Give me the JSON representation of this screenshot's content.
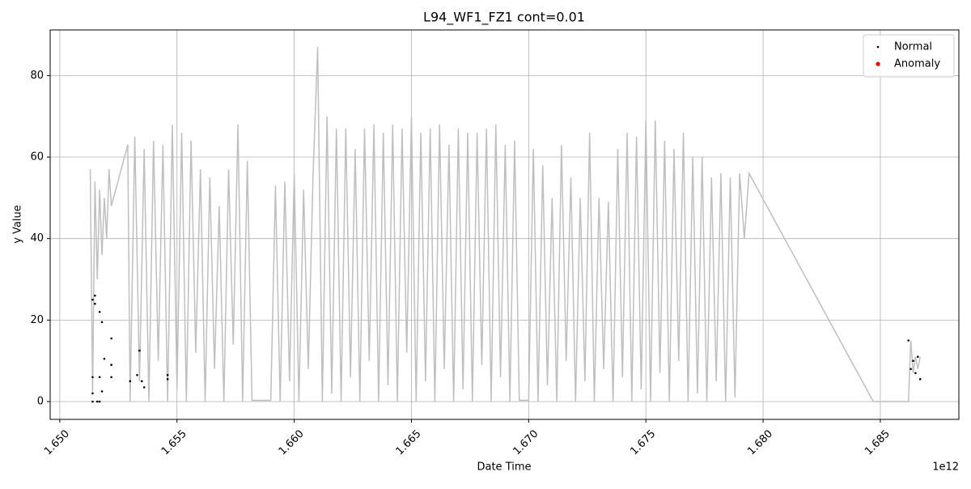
{
  "chart_data": {
    "type": "line",
    "title": "L94_WF1_FZ1 cont=0.01",
    "xlabel": "Date Time",
    "ylabel": "y Value",
    "x_offset_label": "1e12",
    "xlim": [
      1.64959,
      1.68835
    ],
    "ylim": [
      -4.37,
      91.2
    ],
    "xticks": [
      {
        "value": 1.65,
        "label": "1.650"
      },
      {
        "value": 1.655,
        "label": "1.655"
      },
      {
        "value": 1.66,
        "label": "1.660"
      },
      {
        "value": 1.665,
        "label": "1.665"
      },
      {
        "value": 1.67,
        "label": "1.670"
      },
      {
        "value": 1.675,
        "label": "1.675"
      },
      {
        "value": 1.68,
        "label": "1.680"
      },
      {
        "value": 1.685,
        "label": "1.685"
      }
    ],
    "yticks": [
      0,
      20,
      40,
      60,
      80
    ],
    "grid": true,
    "legend": "upper right",
    "series": [
      {
        "type": "line",
        "color": "#bfbfbf",
        "x": [
          1.6513,
          1.6514,
          1.6515,
          1.6516,
          1.6517,
          1.6518,
          1.6519,
          1.652,
          1.6521,
          1.6522,
          1.6529,
          1.653,
          1.6532,
          1.6534,
          1.6536,
          1.6538,
          1.654,
          1.6542,
          1.6544,
          1.6546,
          1.6548,
          1.655,
          1.6552,
          1.6554,
          1.6556,
          1.6558,
          1.656,
          1.6562,
          1.6564,
          1.6566,
          1.6568,
          1.657,
          1.6572,
          1.6574,
          1.6576,
          1.6578,
          1.658,
          1.6582,
          1.659,
          1.6592,
          1.6594,
          1.6596,
          1.6598,
          1.66,
          1.6602,
          1.6604,
          1.6606,
          1.6608,
          1.661,
          1.6612,
          1.6614,
          1.6616,
          1.6618,
          1.662,
          1.6622,
          1.6624,
          1.6626,
          1.6628,
          1.663,
          1.6632,
          1.6634,
          1.6636,
          1.6638,
          1.664,
          1.6642,
          1.6644,
          1.6646,
          1.6648,
          1.665,
          1.6652,
          1.6654,
          1.6656,
          1.6658,
          1.666,
          1.6662,
          1.6664,
          1.6666,
          1.6668,
          1.667,
          1.6672,
          1.6674,
          1.6676,
          1.6678,
          1.668,
          1.6682,
          1.6684,
          1.6686,
          1.6688,
          1.669,
          1.6692,
          1.6694,
          1.6696,
          1.67,
          1.6702,
          1.6704,
          1.6706,
          1.6708,
          1.671,
          1.6712,
          1.6714,
          1.6716,
          1.6718,
          1.672,
          1.6722,
          1.6724,
          1.6726,
          1.6728,
          1.673,
          1.6732,
          1.6734,
          1.6736,
          1.6738,
          1.674,
          1.6742,
          1.6744,
          1.6746,
          1.6748,
          1.675,
          1.6752,
          1.6754,
          1.6756,
          1.6758,
          1.676,
          1.6762,
          1.6764,
          1.6766,
          1.6768,
          1.677,
          1.6772,
          1.6774,
          1.6776,
          1.6778,
          1.678,
          1.6782,
          1.6784,
          1.6786,
          1.6788,
          1.679,
          1.6792,
          1.6794,
          1.6847,
          1.6862,
          1.6863,
          1.6864,
          1.6865,
          1.6866,
          1.6867
        ],
        "values": [
          57,
          2,
          54,
          30,
          52,
          36,
          50,
          40,
          57,
          48,
          63,
          0,
          65,
          5,
          62,
          0,
          64,
          10,
          63,
          0,
          68,
          3,
          66,
          0,
          64,
          12,
          57,
          0,
          55,
          8,
          48,
          0,
          57,
          14,
          68,
          0,
          59,
          0.3,
          0.3,
          53,
          0,
          54,
          5,
          56,
          0,
          52,
          8,
          55,
          87,
          0,
          70,
          2,
          67,
          0,
          67,
          6,
          62,
          0,
          67,
          10,
          68,
          0,
          66,
          4,
          68,
          0,
          67,
          12,
          70,
          0,
          66,
          5,
          67,
          0,
          68,
          8,
          63,
          0,
          67,
          3,
          66,
          0,
          66,
          9,
          67,
          0,
          68,
          6,
          63,
          0,
          64,
          0.3,
          0.3,
          62,
          0,
          58,
          4,
          50,
          0,
          63,
          10,
          55,
          0,
          50,
          5,
          66,
          0,
          50,
          8,
          49,
          0,
          62,
          6,
          66,
          0,
          65,
          3,
          69,
          0,
          69,
          7,
          64,
          0,
          62,
          10,
          66,
          0,
          60,
          2,
          60,
          0,
          55,
          5,
          56,
          0,
          55,
          1,
          56,
          40,
          56,
          0,
          0,
          15,
          7,
          11,
          8,
          11
        ]
      },
      {
        "type": "scatter",
        "name": "Normal",
        "color": "#000000",
        "x": [
          1.6514,
          1.6514,
          1.6515,
          1.6515,
          1.6514,
          1.6514,
          1.6516,
          1.6517,
          1.6517,
          1.6517,
          1.6518,
          1.6518,
          1.6519,
          1.6522,
          1.6522,
          1.6522,
          1.653,
          1.6533,
          1.6534,
          1.6535,
          1.6536,
          1.6546,
          1.6546,
          1.6862,
          1.6863,
          1.6864,
          1.6865,
          1.6866,
          1.6867
        ],
        "values": [
          6,
          25,
          26,
          24,
          2,
          0,
          0,
          22,
          6,
          0,
          19.5,
          2.5,
          10.5,
          15.5,
          9,
          6,
          5,
          6.5,
          12.5,
          5,
          3.5,
          6.5,
          5.5,
          15,
          8,
          10,
          7,
          11,
          5.5
        ]
      },
      {
        "type": "scatter",
        "name": "Anomaly",
        "color": "#ff0000",
        "x": [],
        "values": []
      }
    ]
  }
}
